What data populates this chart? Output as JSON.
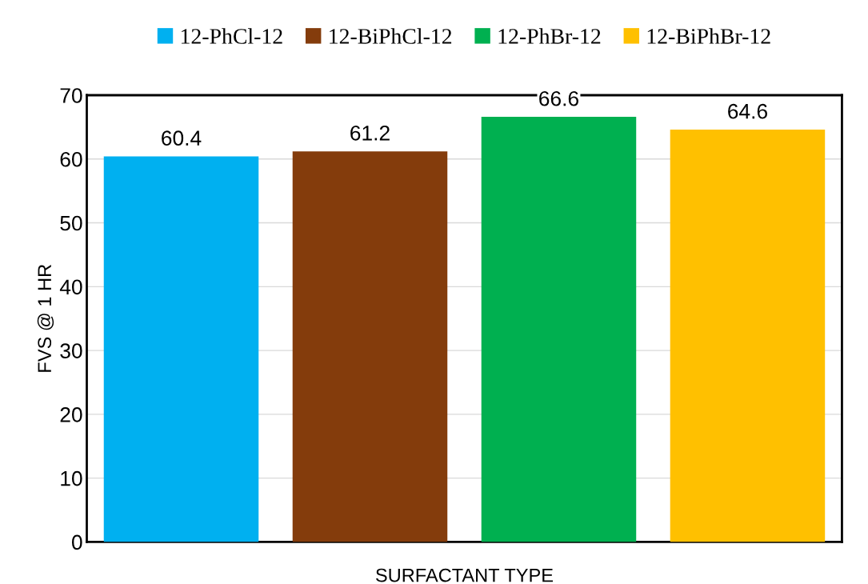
{
  "chart_data": {
    "type": "bar",
    "xlabel": "SURFACTANT TYPE",
    "ylabel": "FVS @ 1 HR",
    "categories": [
      null,
      null,
      null,
      null
    ],
    "series": [
      {
        "name": "12-PhCl-12",
        "color": "#00b0f0",
        "values": [
          60.4,
          null,
          null,
          null
        ]
      },
      {
        "name": "12-BiPhCl-12",
        "color": "#843c0c",
        "values": [
          null,
          61.2,
          null,
          null
        ]
      },
      {
        "name": "12-PhBr-12",
        "color": "#00b050",
        "values": [
          null,
          null,
          66.6,
          null
        ]
      },
      {
        "name": "12-BiPhBr-12",
        "color": "#ffc000",
        "values": [
          null,
          null,
          null,
          64.6
        ]
      }
    ],
    "ylim": [
      0,
      70
    ],
    "yticks": [
      0,
      10,
      20,
      30,
      40,
      50,
      60,
      70
    ],
    "grid": "y",
    "legend": "top",
    "data_labels": true
  }
}
